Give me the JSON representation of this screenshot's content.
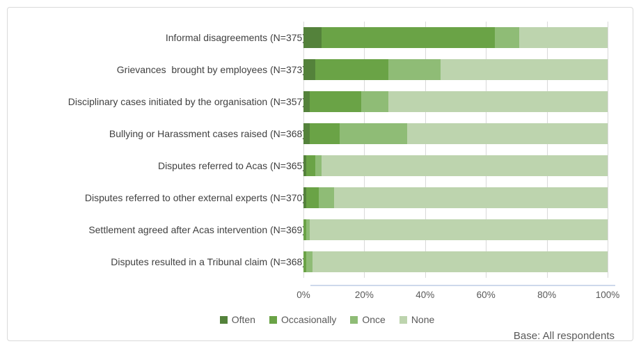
{
  "chart_data": {
    "type": "bar",
    "orientation": "horizontal",
    "stacked": true,
    "categories": [
      "Informal disagreements (N=375)",
      "Grievances  brought by employees (N=373)",
      "Disciplinary cases initiated by the organisation (N=357)",
      "Bullying or Harassment cases raised (N=368)",
      "Disputes referred to Acas (N=365)",
      "Disputes referred to other external experts (N=370)",
      "Settlement agreed after Acas intervention (N=369)",
      "Disputes resulted in a Tribunal claim (N=368)"
    ],
    "series": [
      {
        "name": "Often",
        "color": "#54823b",
        "values": [
          6,
          4,
          2,
          2,
          1,
          1,
          0,
          0
        ]
      },
      {
        "name": "Occasionally",
        "color": "#6aa346",
        "values": [
          57,
          24,
          17,
          10,
          3,
          4,
          1,
          1
        ]
      },
      {
        "name": "Once",
        "color": "#8fbc76",
        "values": [
          8,
          17,
          9,
          22,
          2,
          5,
          1,
          2
        ]
      },
      {
        "name": "None",
        "color": "#bdd4ae",
        "values": [
          29,
          55,
          72,
          66,
          94,
          90,
          98,
          97
        ]
      }
    ],
    "x_axis": {
      "tick_labels": [
        "0%",
        "20%",
        "40%",
        "60%",
        "80%",
        "100%"
      ],
      "min": 0,
      "max": 100,
      "unit": "percent"
    },
    "grid": "vertical",
    "legend_position": "bottom",
    "title": "",
    "footnote": "Base: All respondents"
  },
  "colors": {
    "gridline": "#d9d9d9",
    "axis_line": "#cdd8eb",
    "frame_border": "#d9d9d9",
    "category_label": "#404040",
    "tick_label": "#595959"
  }
}
